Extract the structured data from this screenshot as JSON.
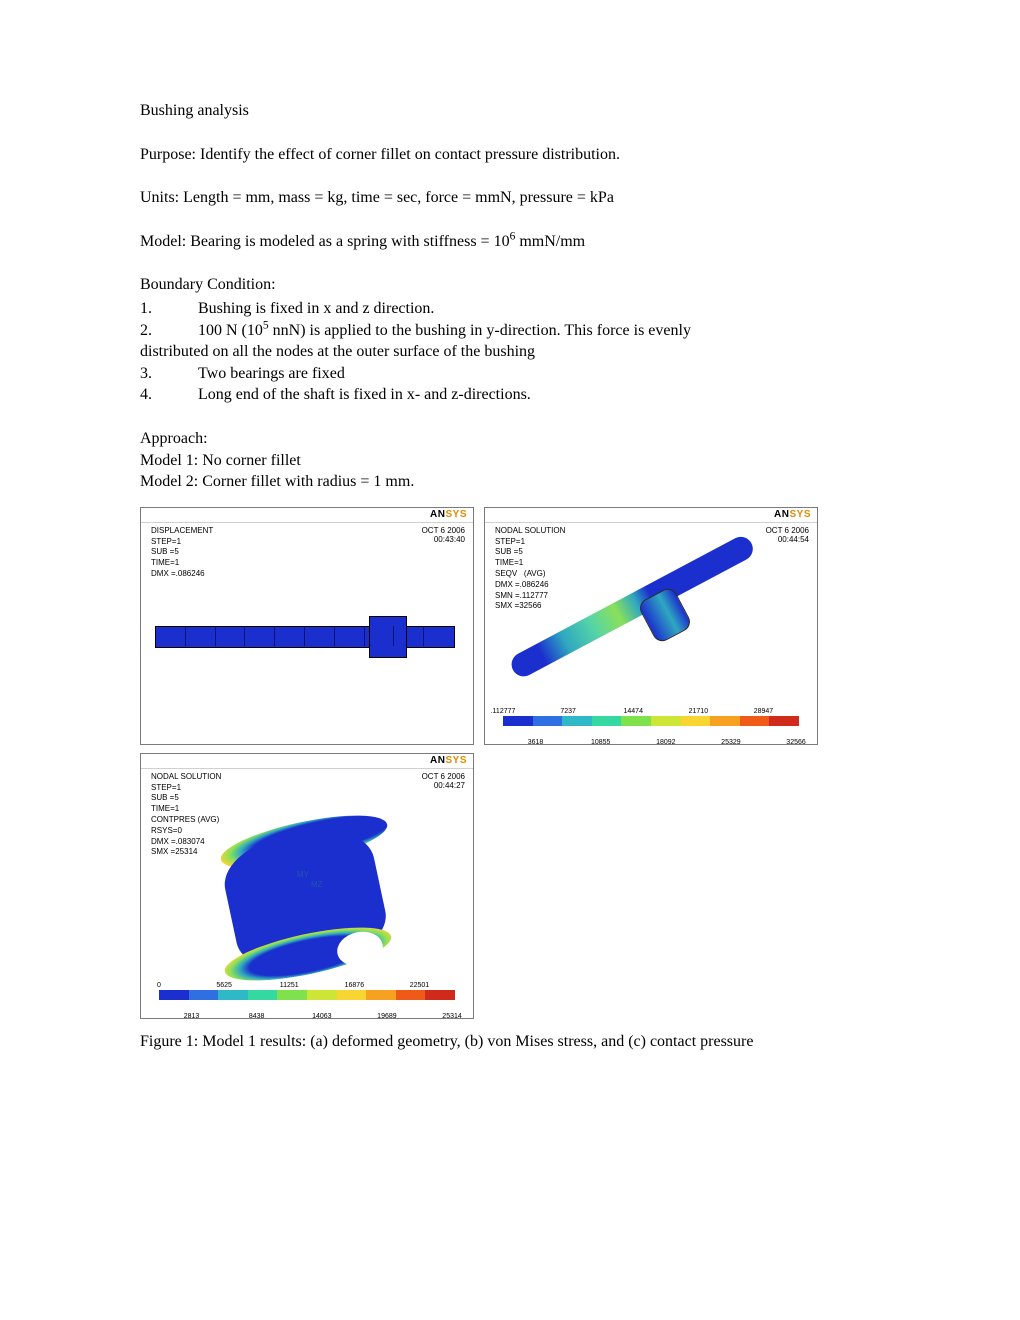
{
  "title": "Bushing analysis",
  "purpose": "Purpose: Identify the effect of corner fillet on contact pressure distribution.",
  "units": "Units: Length = mm, mass = kg, time = sec, force = mmN, pressure = kPa",
  "model_pre": "Model: Bearing is modeled as a spring with stiffness = 10",
  "model_exp": "6",
  "model_post": " mmN/mm",
  "bc_label": "Boundary Condition:",
  "bc": {
    "n1": "1.",
    "t1": "Bushing is fixed in x and z direction.",
    "n2": "2.",
    "t2a": "100 N (10",
    "t2exp": "5",
    "t2b": " nnN) is applied to the bushing in y-direction. This force is evenly",
    "t2c": "distributed on all the nodes at the outer surface of the bushing",
    "n3": "3.",
    "t3": "Two bearings are fixed",
    "n4": "4.",
    "t4": "Long end of the shaft is fixed in x- and z-directions."
  },
  "approach_label": "Approach:",
  "approach1": "Model 1: No corner fillet",
  "approach2": "Model 2: Corner fillet with radius = 1 mm.",
  "logo_an": "AN",
  "logo_ys": "SYS",
  "panelA": {
    "title": "DISPLACEMENT",
    "meta": "STEP=1\nSUB =5\nTIME=1\nDMX =.086246",
    "date": "OCT  6 2006",
    "time": "00:43:40"
  },
  "panelB": {
    "title": "NODAL SOLUTION",
    "meta": "STEP=1\nSUB =5\nTIME=1\nSEQV   (AVG)\nDMX =.086246\nSMN =.112777\nSMX =32566",
    "date": "OCT  6 2006",
    "time": "00:44:54",
    "legend_colors": [
      "#1b2fce",
      "#2f6fe2",
      "#2fb8c8",
      "#34d8a0",
      "#7fe24c",
      "#cde636",
      "#f8d531",
      "#f6a11f",
      "#ef5a18",
      "#cf2a1a"
    ],
    "ticks_top": [
      ".112777",
      "7237",
      "14474",
      "21710",
      "28947"
    ],
    "ticks_bot": [
      "3618",
      "10855",
      "18092",
      "25329",
      "32566"
    ]
  },
  "panelC": {
    "title": "NODAL SOLUTION",
    "meta": "STEP=1\nSUB =5\nTIME=1\nCONTPRES (AVG)\nRSYS=0\nDMX =.083074\nSMX =25314",
    "date": "OCT  6 2006",
    "time": "00:44:27",
    "axis1": "MY",
    "axis2": "MZ",
    "legend_colors": [
      "#1b2fce",
      "#2f6fe2",
      "#2fb8c8",
      "#34d8a0",
      "#7fe24c",
      "#cde636",
      "#f8d531",
      "#f6a11f",
      "#ef5a18",
      "#cf2a1a"
    ],
    "ticks_top": [
      "0",
      "5625",
      "11251",
      "16876",
      "22501"
    ],
    "ticks_bot": [
      "2813",
      "8438",
      "14063",
      "19689",
      "25314"
    ]
  },
  "caption": "Figure 1: Model 1 results: (a) deformed geometry, (b) von Mises stress, and (c) contact pressure"
}
